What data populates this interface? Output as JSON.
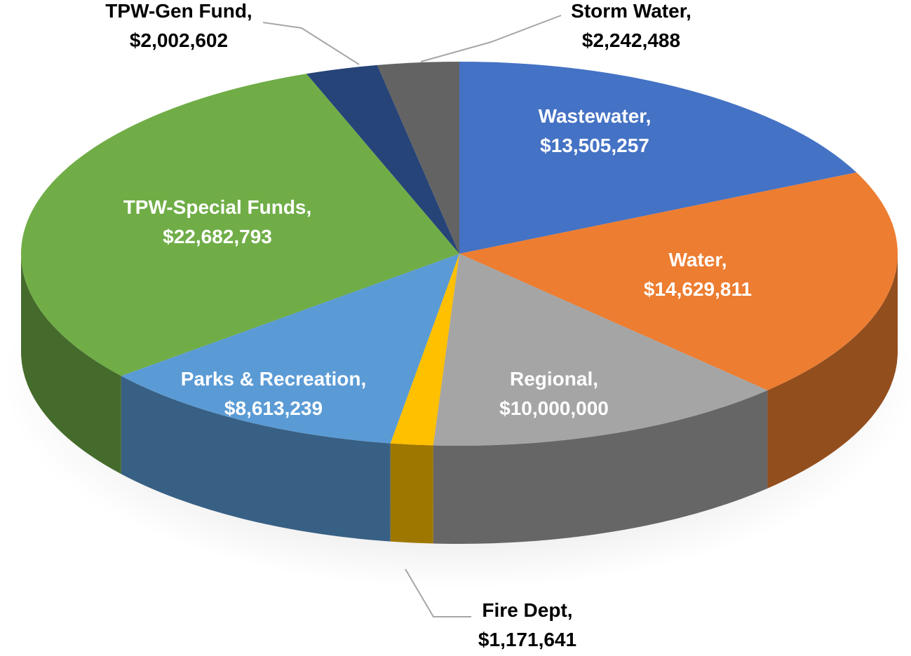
{
  "chart_data": {
    "type": "pie3d",
    "categories": [
      "Wastewater,",
      "Water,",
      "Regional,",
      "Fire Dept,",
      "Parks & Recreation,",
      "TPW-Special Funds,",
      "TPW-Gen Fund,",
      "Storm Water,"
    ],
    "values": [
      13505257,
      14629811,
      10000000,
      1171641,
      8613239,
      22682793,
      2002602,
      2242488
    ],
    "value_labels": [
      "$13,505,257",
      "$14,629,811",
      "$10,000,000",
      "$1,171,641",
      "$8,613,239",
      "$22,682,793",
      "$2,002,602",
      "$2,242,488"
    ],
    "colors": [
      "#4472c4",
      "#ed7d31",
      "#a5a5a5",
      "#ffc000",
      "#5b9bd5",
      "#70ad47",
      "#264478",
      "#636363"
    ]
  }
}
